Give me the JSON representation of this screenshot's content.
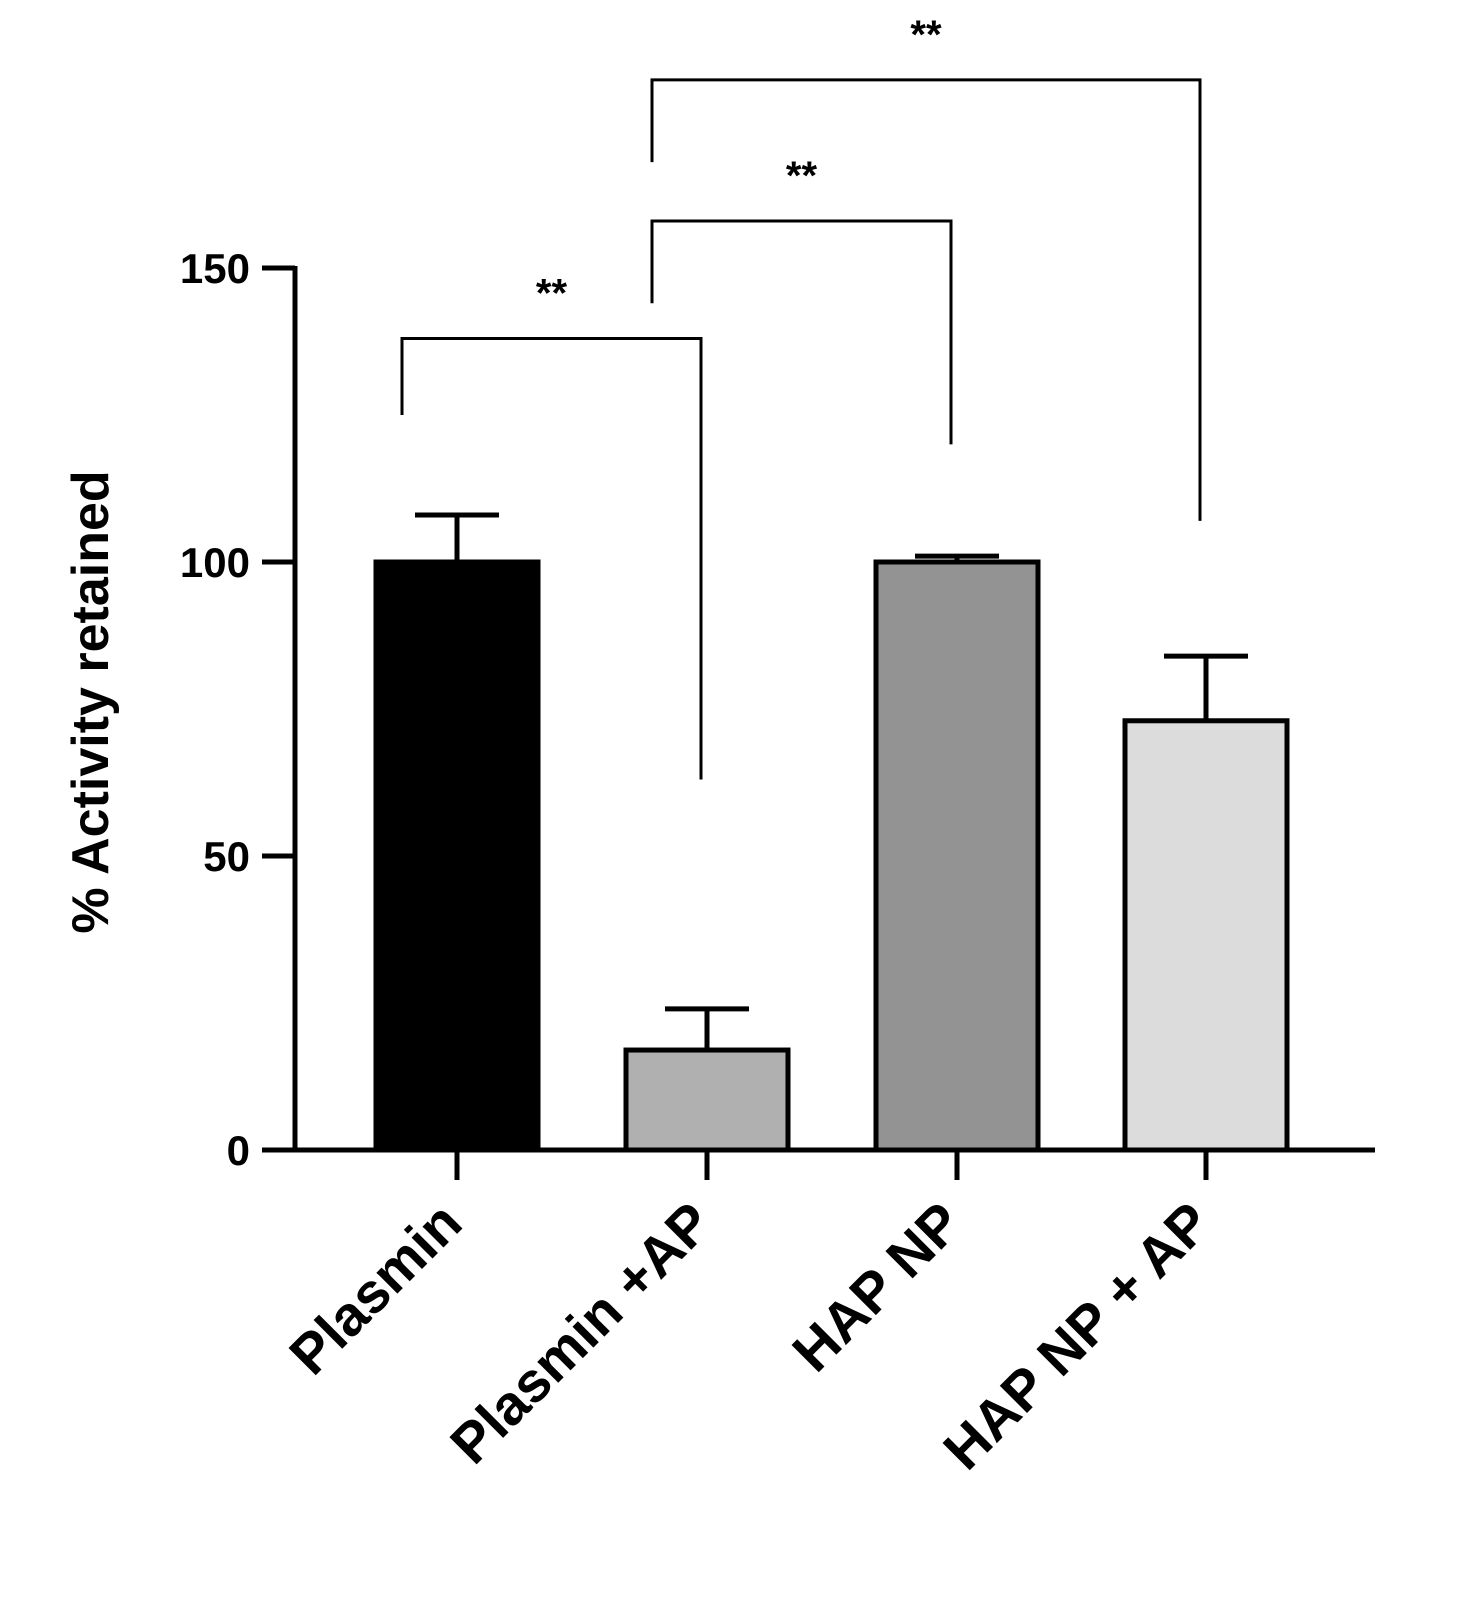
{
  "chart_data": {
    "type": "bar",
    "title": "",
    "xlabel": "",
    "ylabel": "% Activity retained",
    "ylim": [
      0,
      150
    ],
    "yticks": [
      0,
      50,
      100,
      150
    ],
    "grid": false,
    "legend": "none",
    "categories": [
      "Plasmin",
      "Plasmin +AP",
      "HAP NP",
      "HAP NP + AP"
    ],
    "values": [
      100,
      17,
      100,
      73
    ],
    "errors": [
      8,
      7,
      1,
      11
    ],
    "bar_colors": [
      "#000000",
      "#b0b0b0",
      "#939393",
      "#dcdcdc"
    ],
    "bar_edge_color": "#000000",
    "significance": [
      {
        "from": 0,
        "to": 1,
        "label": "**",
        "y": 138,
        "left_end": 125,
        "right_end": 63
      },
      {
        "from": 1,
        "to": 2,
        "label": "**",
        "y": 158,
        "left_end": 144,
        "right_end": 120
      },
      {
        "from": 1,
        "to": 3,
        "label": "**",
        "y": 182,
        "left_end": 168,
        "right_end": 107
      }
    ]
  }
}
